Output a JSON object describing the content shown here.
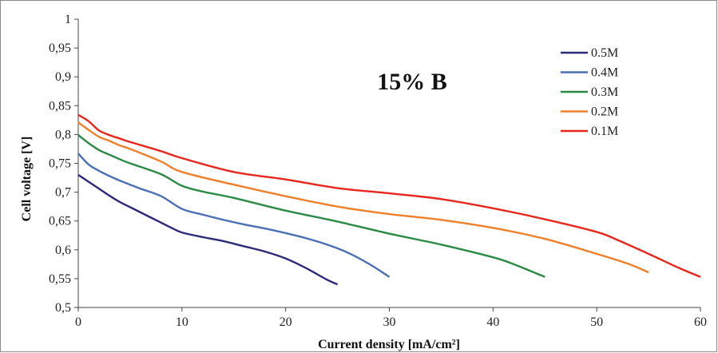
{
  "chart_data": {
    "type": "line",
    "title": "15% B",
    "xlabel": "Current density [mA/cm²]",
    "ylabel": "Cell voltage [V]",
    "xlim": [
      0,
      60
    ],
    "ylim": [
      0.5,
      1
    ],
    "x_ticks": [
      0,
      10,
      20,
      30,
      40,
      50,
      60
    ],
    "x_tick_labels": [
      "0",
      "10",
      "20",
      "30",
      "40",
      "50",
      "60"
    ],
    "y_ticks": [
      0.5,
      0.55,
      0.6,
      0.65,
      0.7,
      0.75,
      0.8,
      0.85,
      0.9,
      0.95,
      1
    ],
    "y_tick_labels": [
      "0,5",
      "0,55",
      "0,6",
      "0,65",
      "0,7",
      "0,75",
      "0,8",
      "0,85",
      "0,9",
      "0,95",
      "1"
    ],
    "grid": false,
    "legend_position": "top-right",
    "series": [
      {
        "name": "0.5M",
        "color": "#2e2a7a",
        "points": [
          [
            0,
            0.73
          ],
          [
            1,
            0.718
          ],
          [
            2,
            0.706
          ],
          [
            3,
            0.694
          ],
          [
            4,
            0.683
          ],
          [
            5,
            0.674
          ],
          [
            6,
            0.665
          ],
          [
            7,
            0.656
          ],
          [
            8,
            0.647
          ],
          [
            9,
            0.638
          ],
          [
            10,
            0.63
          ],
          [
            12,
            0.622
          ],
          [
            14,
            0.615
          ],
          [
            16,
            0.606
          ],
          [
            18,
            0.597
          ],
          [
            20,
            0.585
          ],
          [
            22,
            0.568
          ],
          [
            24,
            0.548
          ],
          [
            25,
            0.54
          ]
        ]
      },
      {
        "name": "0.4M",
        "color": "#4a6fb5",
        "points": [
          [
            0,
            0.767
          ],
          [
            1,
            0.748
          ],
          [
            2,
            0.737
          ],
          [
            3,
            0.728
          ],
          [
            4,
            0.72
          ],
          [
            5,
            0.713
          ],
          [
            6,
            0.706
          ],
          [
            8,
            0.693
          ],
          [
            10,
            0.671
          ],
          [
            12,
            0.661
          ],
          [
            14,
            0.652
          ],
          [
            16,
            0.644
          ],
          [
            18,
            0.637
          ],
          [
            20,
            0.629
          ],
          [
            22,
            0.62
          ],
          [
            24,
            0.609
          ],
          [
            26,
            0.595
          ],
          [
            28,
            0.576
          ],
          [
            30,
            0.553
          ]
        ]
      },
      {
        "name": "0.3M",
        "color": "#2a8a45",
        "points": [
          [
            0,
            0.799
          ],
          [
            1,
            0.785
          ],
          [
            2,
            0.773
          ],
          [
            3,
            0.765
          ],
          [
            4,
            0.757
          ],
          [
            5,
            0.75
          ],
          [
            8,
            0.731
          ],
          [
            10,
            0.711
          ],
          [
            12,
            0.701
          ],
          [
            15,
            0.69
          ],
          [
            20,
            0.668
          ],
          [
            25,
            0.649
          ],
          [
            30,
            0.628
          ],
          [
            35,
            0.609
          ],
          [
            40,
            0.587
          ],
          [
            42,
            0.575
          ],
          [
            45,
            0.553
          ]
        ]
      },
      {
        "name": "0.2M",
        "color": "#f07f2a",
        "points": [
          [
            0,
            0.821
          ],
          [
            1,
            0.808
          ],
          [
            2,
            0.796
          ],
          [
            3,
            0.789
          ],
          [
            4,
            0.781
          ],
          [
            5,
            0.775
          ],
          [
            8,
            0.753
          ],
          [
            10,
            0.735
          ],
          [
            15,
            0.713
          ],
          [
            20,
            0.693
          ],
          [
            25,
            0.675
          ],
          [
            30,
            0.662
          ],
          [
            35,
            0.652
          ],
          [
            40,
            0.638
          ],
          [
            45,
            0.619
          ],
          [
            50,
            0.593
          ],
          [
            53,
            0.576
          ],
          [
            55,
            0.561
          ]
        ]
      },
      {
        "name": "0.1M",
        "color": "#e8261c",
        "points": [
          [
            0,
            0.834
          ],
          [
            1,
            0.823
          ],
          [
            2,
            0.807
          ],
          [
            3,
            0.799
          ],
          [
            4,
            0.793
          ],
          [
            5,
            0.787
          ],
          [
            8,
            0.771
          ],
          [
            10,
            0.759
          ],
          [
            15,
            0.735
          ],
          [
            20,
            0.722
          ],
          [
            25,
            0.707
          ],
          [
            30,
            0.698
          ],
          [
            35,
            0.688
          ],
          [
            40,
            0.672
          ],
          [
            45,
            0.653
          ],
          [
            50,
            0.631
          ],
          [
            52,
            0.617
          ],
          [
            55,
            0.593
          ],
          [
            58,
            0.568
          ],
          [
            60,
            0.553
          ]
        ]
      }
    ]
  }
}
